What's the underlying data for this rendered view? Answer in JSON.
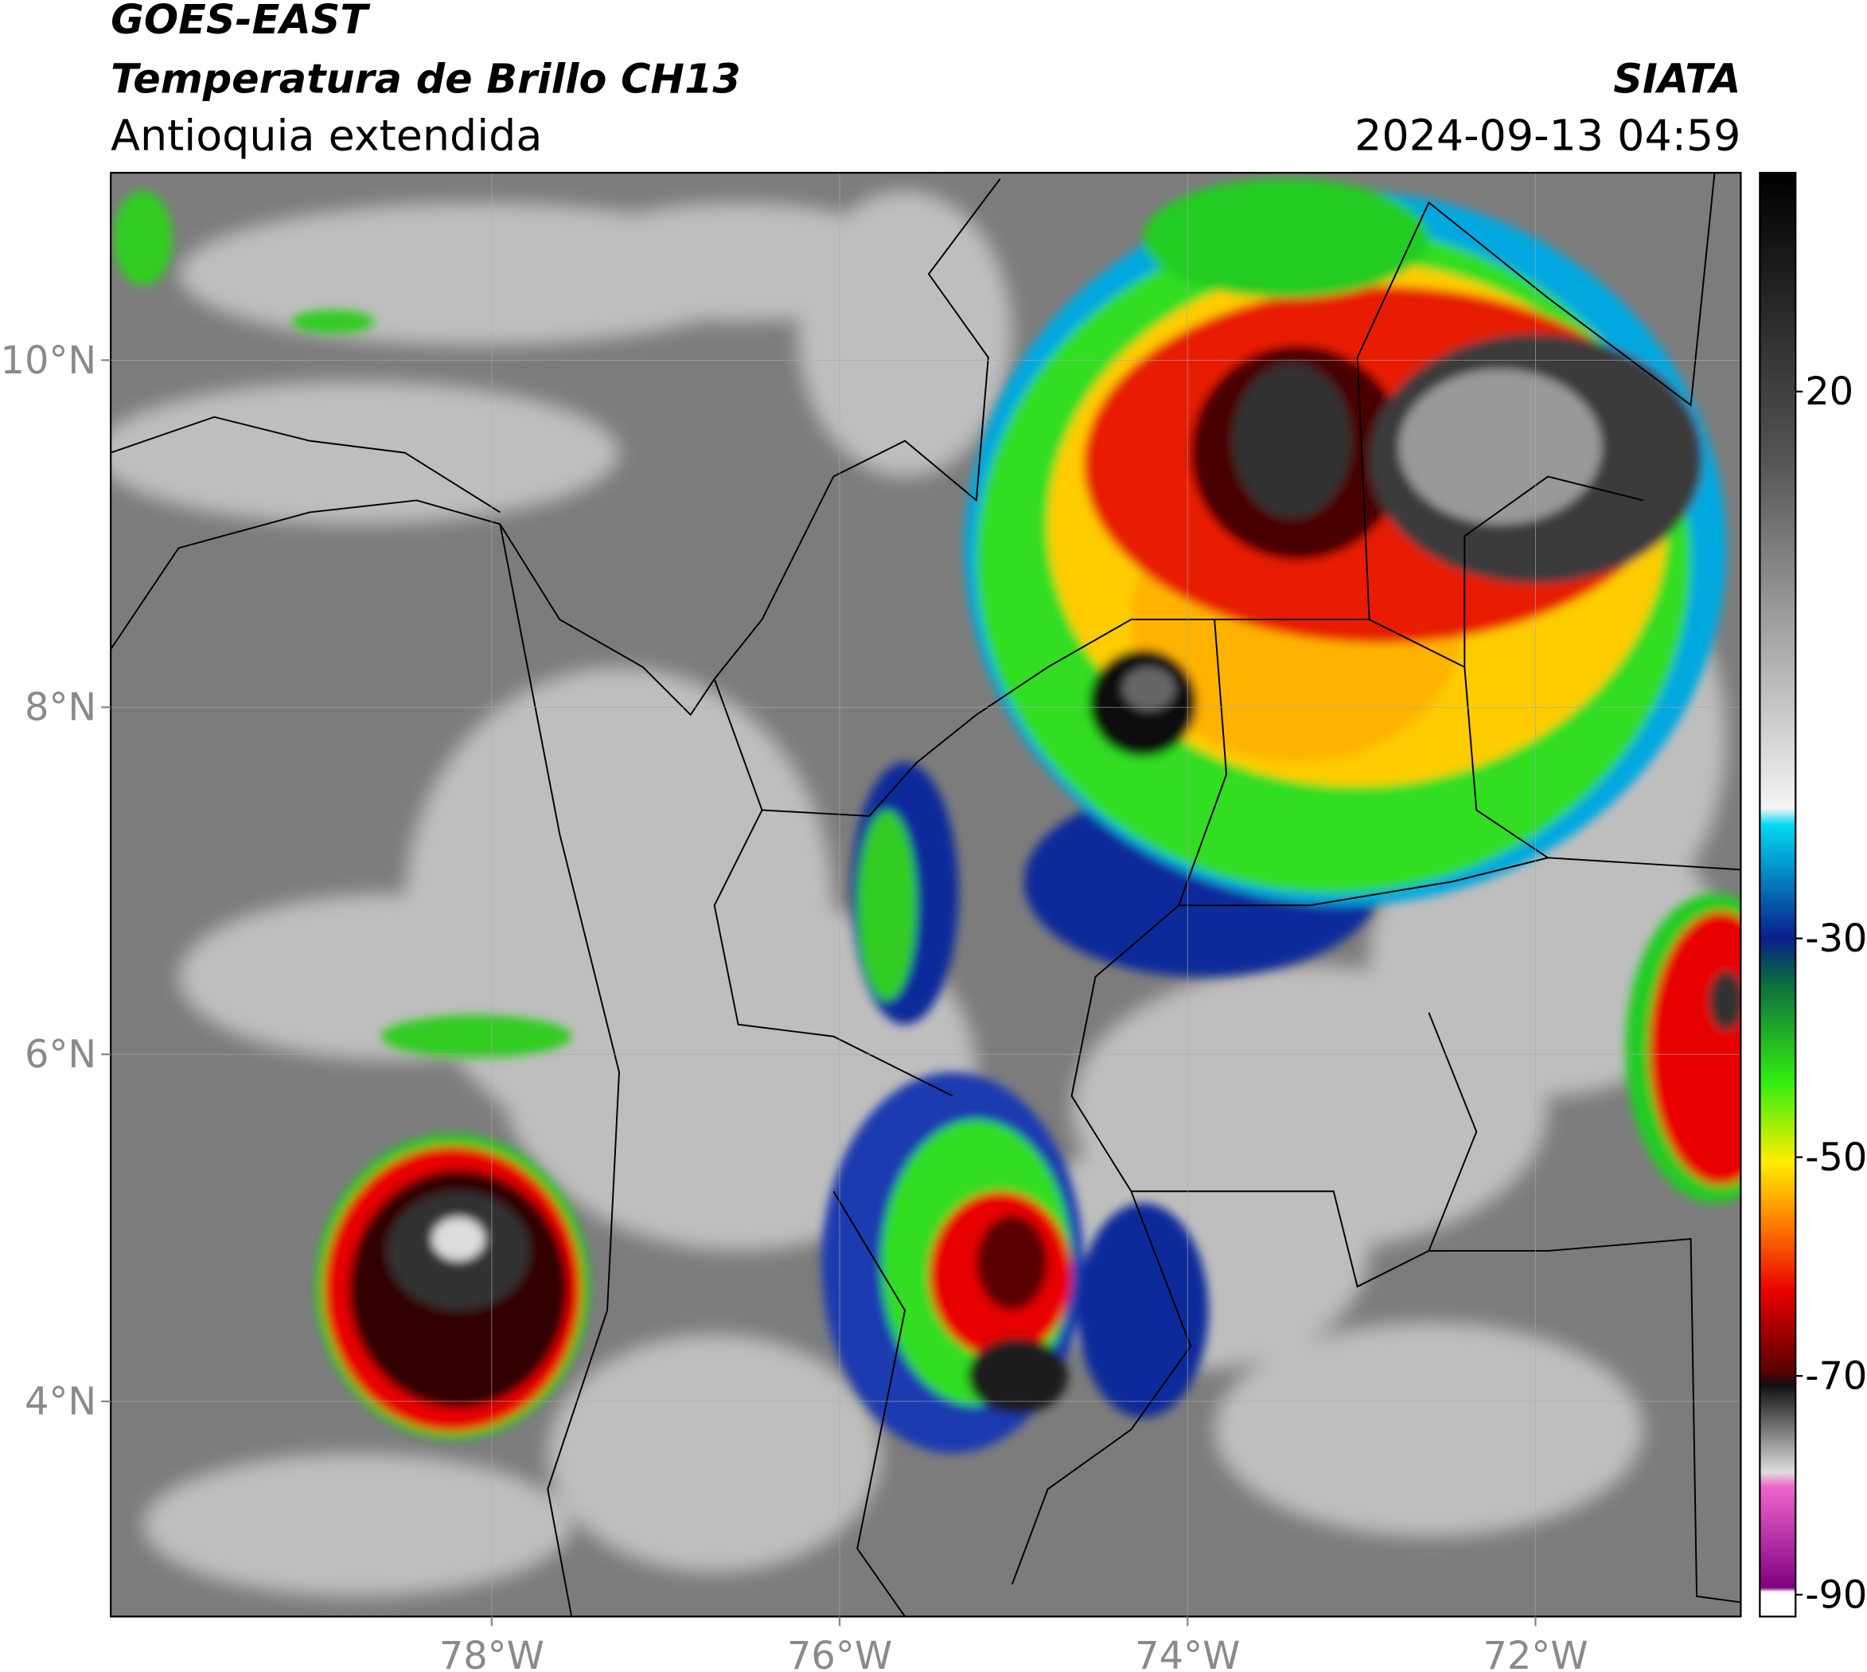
{
  "header": {
    "title": "GOES-EAST",
    "subtitle": "Temperatura de Brillo CH13",
    "region": "Antioquia extendida",
    "agency": "SIATA",
    "datetime": "2024-09-13 04:59"
  },
  "map": {
    "xlim": [
      -80.19,
      -70.82
    ],
    "ylim": [
      2.76,
      11.08
    ],
    "xticks": [
      {
        "value": -78,
        "label": "78°W"
      },
      {
        "value": -76,
        "label": "76°W"
      },
      {
        "value": -74,
        "label": "74°W"
      },
      {
        "value": -72,
        "label": "72°W"
      }
    ],
    "yticks": [
      {
        "value": 10,
        "label": "10°N"
      },
      {
        "value": 8,
        "label": "8°N"
      },
      {
        "value": 6,
        "label": "6°N"
      },
      {
        "value": 4,
        "label": "4°N"
      }
    ]
  },
  "colorbar": {
    "lim": [
      -92,
      40
    ],
    "ticks": [
      20,
      -30,
      -50,
      -70,
      -90
    ]
  }
}
